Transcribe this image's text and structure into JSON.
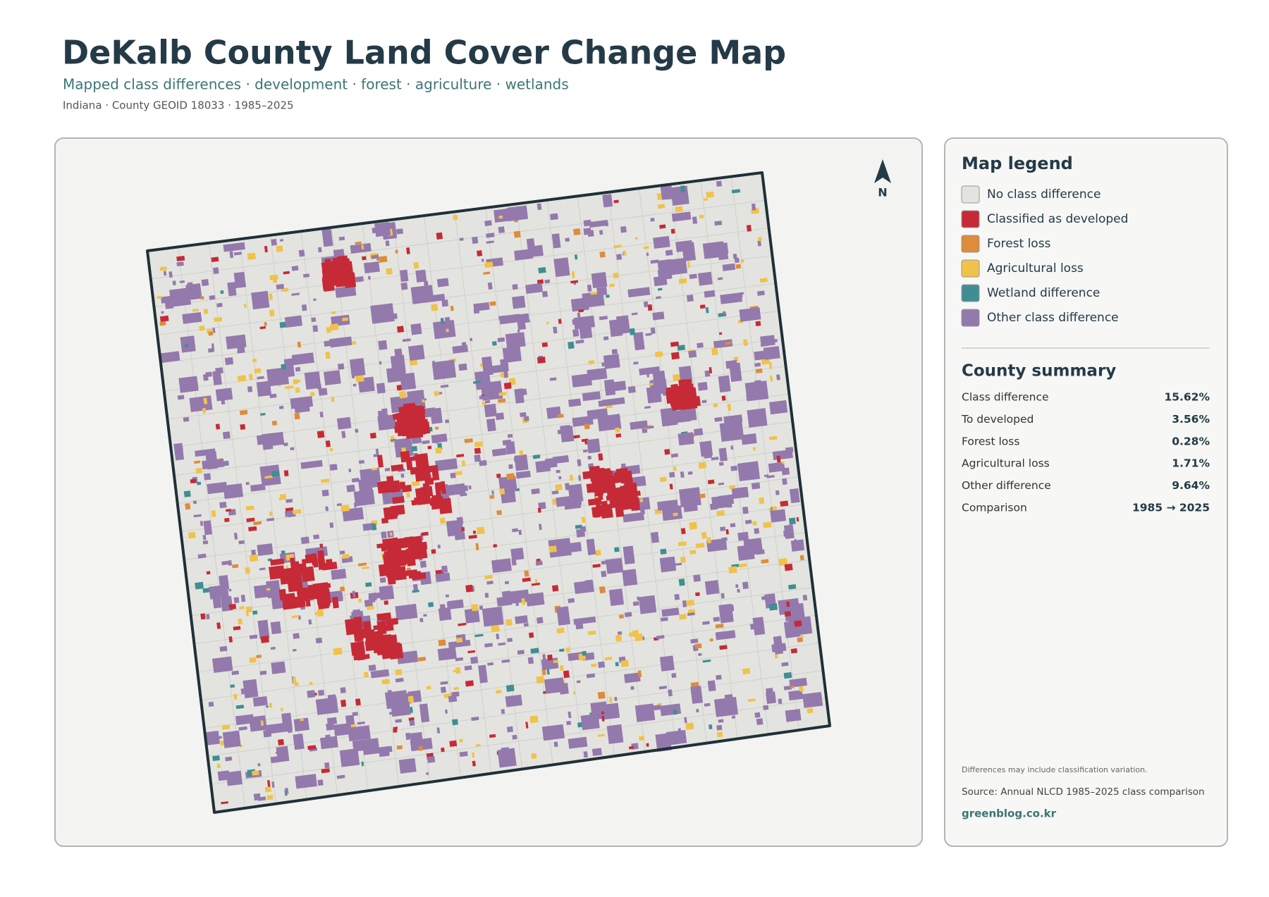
{
  "header": {
    "title": "DeKalb County Land Cover Change Map",
    "subtitle": "Mapped class differences · development · forest · agriculture · wetlands",
    "meta": "Indiana · County GEOID 18033 · 1985–2025"
  },
  "map": {
    "north_label": "N"
  },
  "legend": {
    "title": "Map legend",
    "items": [
      {
        "name": "No class difference",
        "color": "#e3e4df"
      },
      {
        "name": "Classified as developed",
        "color": "#c62a36"
      },
      {
        "name": "Forest loss",
        "color": "#de8b3c"
      },
      {
        "name": "Agricultural loss",
        "color": "#f0c24a"
      },
      {
        "name": "Wetland difference",
        "color": "#3f8e94"
      },
      {
        "name": "Other class difference",
        "color": "#9479ad"
      }
    ]
  },
  "summary": {
    "title": "County summary",
    "rows": [
      {
        "label": "Class difference",
        "value": "15.62%"
      },
      {
        "label": "To developed",
        "value": "3.56%"
      },
      {
        "label": "Forest loss",
        "value": "0.28%"
      },
      {
        "label": "Agricultural loss",
        "value": "1.71%"
      },
      {
        "label": "Other difference",
        "value": "9.64%"
      },
      {
        "label": "Comparison",
        "value": "1985 → 2025"
      }
    ]
  },
  "notes": {
    "caveat": "Differences may include classification variation.",
    "source": "Source: Annual NLCD 1985–2025 class comparison",
    "credit": "greenblog.co.kr"
  }
}
